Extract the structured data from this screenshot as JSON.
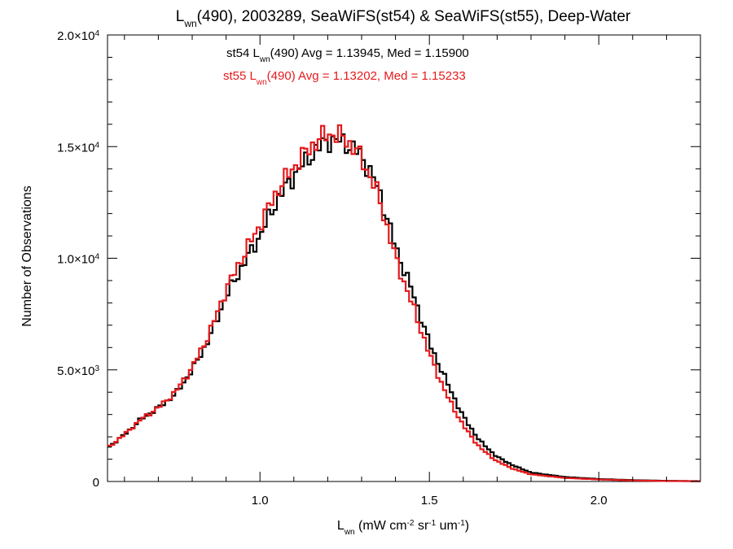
{
  "chart_data": {
    "type": "line",
    "title_parts": {
      "main": "L",
      "sub": "wn",
      "rest": "(490), 2003289, SeaWiFS(st54) & SeaWiFS(st55), Deep-Water"
    },
    "xlabel_parts": {
      "main": "L",
      "sub": "wn",
      "a": " (mW cm",
      "sup1": "-2",
      "b": " sr",
      "sup2": "-1",
      "c": " um",
      "sup3": "-1",
      "d": ")"
    },
    "ylabel": "Number of Observations",
    "xlim": [
      0.55,
      2.3
    ],
    "ylim": [
      0,
      20000
    ],
    "x_ticks": [
      {
        "value": 1.0,
        "label": "1.0"
      },
      {
        "value": 1.5,
        "label": "1.5"
      },
      {
        "value": 2.0,
        "label": "2.0"
      }
    ],
    "y_ticks": [
      {
        "value": 0,
        "mant": "0",
        "exp": ""
      },
      {
        "value": 5000,
        "mant": "5.0×10",
        "exp": "3"
      },
      {
        "value": 10000,
        "mant": "1.0×10",
        "exp": "4"
      },
      {
        "value": 15000,
        "mant": "1.5×10",
        "exp": "4"
      },
      {
        "value": 20000,
        "mant": "2.0×10",
        "exp": "4"
      }
    ],
    "legend": [
      {
        "pre": "st54 L",
        "sub": "wn",
        "post": "(490) Avg = 1.13945, Med = 1.15900",
        "color": "#000000"
      },
      {
        "pre": "st55 L",
        "sub": "wn",
        "post": "(490) Avg = 1.13202, Med = 1.15233",
        "color": "#e41a1c"
      }
    ],
    "series": [
      {
        "color": "#000000",
        "x": [
          0.55,
          0.6,
          0.65,
          0.7,
          0.75,
          0.8,
          0.85,
          0.9,
          0.95,
          1.0,
          1.05,
          1.1,
          1.15,
          1.2,
          1.25,
          1.3,
          1.35,
          1.4,
          1.45,
          1.5,
          1.55,
          1.6,
          1.65,
          1.7,
          1.75,
          1.8,
          1.9,
          2.0,
          2.1,
          2.2,
          2.3
        ],
        "y": [
          1500,
          2100,
          2800,
          3300,
          3900,
          5000,
          6400,
          8300,
          9700,
          11000,
          12600,
          13700,
          14600,
          15300,
          15200,
          14600,
          13100,
          10500,
          8500,
          6200,
          4500,
          2900,
          1800,
          1100,
          700,
          400,
          200,
          110,
          60,
          30,
          15
        ]
      },
      {
        "color": "#e41a1c",
        "x": [
          0.55,
          0.6,
          0.65,
          0.7,
          0.75,
          0.8,
          0.85,
          0.9,
          0.95,
          1.0,
          1.05,
          1.1,
          1.15,
          1.2,
          1.25,
          1.3,
          1.35,
          1.4,
          1.45,
          1.5,
          1.55,
          1.6,
          1.65,
          1.7,
          1.75,
          1.8,
          1.9,
          2.0,
          2.1,
          2.2,
          2.3
        ],
        "y": [
          1500,
          2100,
          2800,
          3300,
          4000,
          5100,
          6600,
          8600,
          10100,
          11500,
          13000,
          14100,
          15000,
          15600,
          15400,
          14500,
          12800,
          10000,
          7900,
          5700,
          3900,
          2500,
          1500,
          900,
          550,
          320,
          160,
          90,
          45,
          20,
          10
        ]
      }
    ]
  }
}
